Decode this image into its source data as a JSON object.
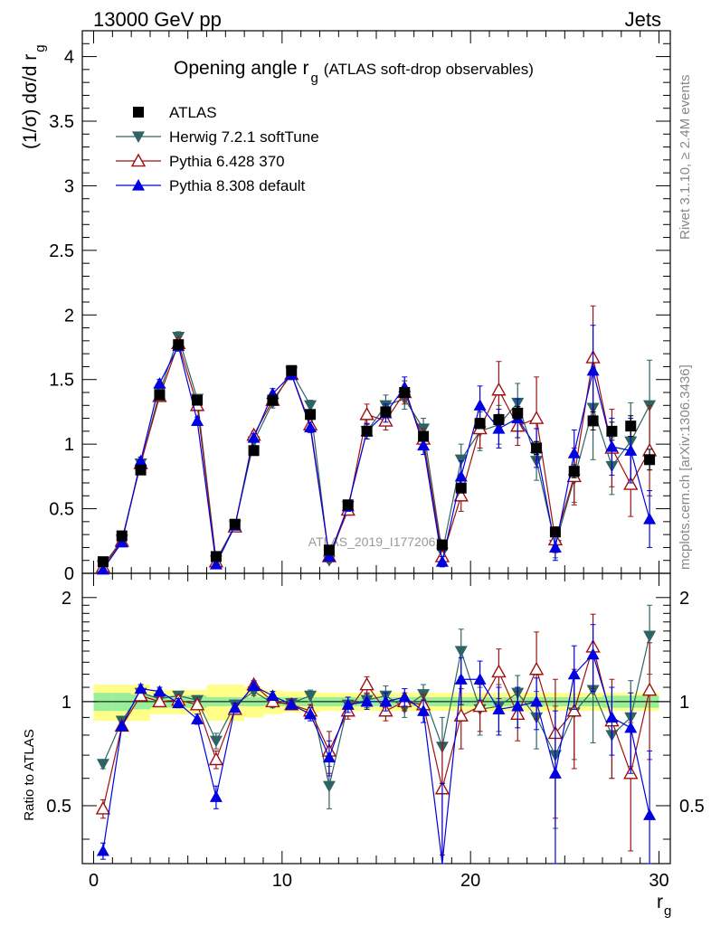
{
  "header": {
    "left": "13000 GeV pp",
    "right": "Jets"
  },
  "side_labels": {
    "rivet": "Rivet 3.1.10, ≥ 2.4M events",
    "mcplots": "mcplots.cern.ch [arXiv:1306.3436]"
  },
  "watermark": "ATLAS_2019_I1772062",
  "chart_data": [
    {
      "type": "scatter",
      "panel": "main",
      "title_main": "Opening angle r",
      "title_sub": "g",
      "title_rest": "(ATLAS soft-drop observables)",
      "ylabel": "(1/σ) dσ/d r",
      "ylabel_sub": "g",
      "ylim": [
        0,
        4.2
      ],
      "xlim": [
        -0.6,
        30.6
      ],
      "yticks": [
        0,
        0.5,
        1,
        1.5,
        2,
        2.5,
        3,
        3.5,
        4
      ],
      "ytick_labels": [
        "0",
        "0.5",
        "1",
        "1.5",
        "2",
        "2.5",
        "3",
        "3.5",
        "4"
      ],
      "x": [
        0.5,
        1.5,
        2.5,
        3.5,
        4.5,
        5.5,
        6.5,
        7.5,
        8.5,
        9.5,
        10.5,
        11.5,
        12.5,
        13.5,
        14.5,
        15.5,
        16.5,
        17.5,
        18.5,
        19.5,
        20.5,
        21.5,
        22.5,
        23.5,
        24.5,
        25.5,
        26.5,
        27.5,
        28.5,
        29.5
      ],
      "legend": [
        {
          "label": "ATLAS",
          "marker": "square-filled",
          "color": "#000000"
        },
        {
          "label": "Herwig 7.2.1 softTune",
          "marker": "triangle-down-filled",
          "color": "#2e6363"
        },
        {
          "label": "Pythia 6.428 370",
          "marker": "triangle-up-open",
          "color": "#a01010"
        },
        {
          "label": "Pythia 8.308 default",
          "marker": "triangle-up-filled",
          "color": "#0000e0"
        }
      ],
      "series": [
        {
          "name": "ATLAS",
          "color": "#000000",
          "marker": "square-filled",
          "line": false,
          "values": [
            0.09,
            0.29,
            0.8,
            1.38,
            1.77,
            1.34,
            0.13,
            0.38,
            0.95,
            1.34,
            1.57,
            1.23,
            0.18,
            0.53,
            1.1,
            1.25,
            1.4,
            1.06,
            0.22,
            0.66,
            1.16,
            1.19,
            1.24,
            0.97,
            0.32,
            0.79,
            1.18,
            1.1,
            1.14,
            0.88
          ],
          "errors": [
            0.01,
            0.01,
            0.02,
            0.02,
            0.02,
            0.02,
            0.01,
            0.02,
            0.02,
            0.02,
            0.02,
            0.02,
            0.01,
            0.02,
            0.03,
            0.03,
            0.03,
            0.03,
            0.02,
            0.03,
            0.04,
            0.04,
            0.05,
            0.05,
            0.03,
            0.05,
            0.07,
            0.07,
            0.08,
            0.08
          ]
        },
        {
          "name": "Herwig 7.2.1 softTune",
          "color": "#2e6363",
          "marker": "triangle-down-filled",
          "line": true,
          "values": [
            0.06,
            0.26,
            0.85,
            1.4,
            1.83,
            1.35,
            0.1,
            0.37,
            1.02,
            1.32,
            1.56,
            1.3,
            0.1,
            0.52,
            1.1,
            1.3,
            1.35,
            1.12,
            0.16,
            0.88,
            1.1,
            1.15,
            1.32,
            0.87,
            0.22,
            0.73,
            1.28,
            0.83,
            1.02,
            1.3
          ],
          "errors": [
            0.02,
            0.02,
            0.03,
            0.03,
            0.04,
            0.03,
            0.02,
            0.03,
            0.03,
            0.04,
            0.04,
            0.04,
            0.02,
            0.04,
            0.06,
            0.08,
            0.08,
            0.08,
            0.05,
            0.12,
            0.15,
            0.15,
            0.15,
            0.15,
            0.1,
            0.18,
            0.4,
            0.22,
            0.3,
            0.35
          ]
        },
        {
          "name": "Pythia 6.428 370",
          "color": "#a01010",
          "marker": "triangle-up-open",
          "line": true,
          "values": [
            0.05,
            0.25,
            0.85,
            1.37,
            1.78,
            1.3,
            0.09,
            0.36,
            1.07,
            1.34,
            1.54,
            1.15,
            0.13,
            0.49,
            1.23,
            1.18,
            1.4,
            1.04,
            0.13,
            0.6,
            1.12,
            1.42,
            1.14,
            1.2,
            0.26,
            0.75,
            1.67,
            0.97,
            0.69,
            0.95
          ],
          "errors": [
            0.02,
            0.02,
            0.03,
            0.03,
            0.04,
            0.03,
            0.02,
            0.03,
            0.03,
            0.04,
            0.04,
            0.04,
            0.03,
            0.04,
            0.08,
            0.07,
            0.09,
            0.08,
            0.05,
            0.12,
            0.15,
            0.22,
            0.15,
            0.32,
            0.1,
            0.22,
            0.4,
            0.3,
            0.25,
            0.35
          ]
        },
        {
          "name": "Pythia 8.308 default",
          "color": "#0000e0",
          "marker": "triangle-up-filled",
          "line": true,
          "values": [
            0.03,
            0.24,
            0.87,
            1.47,
            1.76,
            1.18,
            0.07,
            0.37,
            1.05,
            1.39,
            1.54,
            1.13,
            0.13,
            0.52,
            1.1,
            1.24,
            1.44,
            0.99,
            0.09,
            0.75,
            1.3,
            1.12,
            1.2,
            0.97,
            0.2,
            0.93,
            1.57,
            0.98,
            0.95,
            0.42
          ],
          "errors": [
            0.01,
            0.02,
            0.03,
            0.03,
            0.04,
            0.03,
            0.02,
            0.03,
            0.03,
            0.04,
            0.04,
            0.04,
            0.02,
            0.04,
            0.06,
            0.07,
            0.08,
            0.07,
            0.04,
            0.12,
            0.15,
            0.15,
            0.15,
            0.15,
            0.1,
            0.18,
            0.35,
            0.22,
            0.25,
            0.22
          ]
        }
      ]
    },
    {
      "type": "scatter",
      "panel": "ratio",
      "ylabel": "Ratio to ATLAS",
      "xlabel": "r",
      "xlabel_sub": "g",
      "ylim": [
        0.34,
        2.35
      ],
      "xlim": [
        -0.6,
        30.6
      ],
      "yticks": [
        0.5,
        1,
        2
      ],
      "ytick_labels": [
        "0.5",
        "1",
        "2"
      ],
      "xticks": [
        0,
        10,
        20,
        30
      ],
      "xtick_labels": [
        "0",
        "10",
        "20",
        "30"
      ],
      "bands": {
        "stat_color": "#99ee99",
        "syst_color": "#ffff88",
        "x_edges": [
          0,
          1,
          2,
          3,
          6,
          8,
          9,
          10,
          12,
          15,
          18,
          21,
          24,
          27,
          30
        ],
        "stat_halfwidth": [
          0.06,
          0.06,
          0.05,
          0.04,
          0.03,
          0.03,
          0.03,
          0.03,
          0.03,
          0.03,
          0.03,
          0.03,
          0.03,
          0.04
        ],
        "syst_halfwidth": [
          0.12,
          0.12,
          0.12,
          0.08,
          0.12,
          0.1,
          0.08,
          0.07,
          0.06,
          0.06,
          0.06,
          0.06,
          0.06,
          0.06
        ]
      },
      "x": [
        0.5,
        1.5,
        2.5,
        3.5,
        4.5,
        5.5,
        6.5,
        7.5,
        8.5,
        9.5,
        10.5,
        11.5,
        12.5,
        13.5,
        14.5,
        15.5,
        16.5,
        17.5,
        18.5,
        19.5,
        20.5,
        21.5,
        22.5,
        23.5,
        24.5,
        25.5,
        26.5,
        27.5,
        28.5,
        29.5
      ],
      "series": [
        {
          "name": "Herwig 7.2.1 softTune",
          "color": "#2e6363",
          "marker": "triangle-down-filled",
          "values": [
            0.66,
            0.88,
            1.06,
            1.02,
            1.04,
            1.01,
            0.77,
            0.98,
            1.07,
            0.99,
            0.99,
            1.04,
            0.57,
            0.98,
            1.01,
            1.04,
            0.96,
            1.05,
            0.74,
            1.4,
            0.95,
            0.97,
            1.06,
            0.9,
            0.7,
            0.93,
            1.08,
            0.8,
            0.9,
            1.55
          ],
          "errors": [
            0.02,
            0.02,
            0.03,
            0.03,
            0.03,
            0.03,
            0.04,
            0.03,
            0.03,
            0.03,
            0.03,
            0.04,
            0.08,
            0.05,
            0.05,
            0.07,
            0.06,
            0.07,
            0.16,
            0.22,
            0.15,
            0.15,
            0.13,
            0.17,
            0.27,
            0.25,
            0.32,
            0.2,
            0.25,
            0.35
          ]
        },
        {
          "name": "Pythia 6.428 370",
          "color": "#a01010",
          "marker": "triangle-up-open",
          "values": [
            0.49,
            0.85,
            1.04,
            1.0,
            1.01,
            0.98,
            0.68,
            0.95,
            1.12,
            1.0,
            0.98,
            0.94,
            0.72,
            0.94,
            1.12,
            0.94,
            1.0,
            0.98,
            0.56,
            0.91,
            0.97,
            1.22,
            0.92,
            1.24,
            0.81,
            0.94,
            1.44,
            0.88,
            0.62,
            1.08
          ],
          "errors": [
            0.03,
            0.02,
            0.03,
            0.03,
            0.03,
            0.03,
            0.04,
            0.03,
            0.03,
            0.03,
            0.03,
            0.04,
            0.1,
            0.05,
            0.06,
            0.06,
            0.06,
            0.07,
            0.2,
            0.18,
            0.15,
            0.2,
            0.15,
            0.35,
            0.35,
            0.3,
            0.35,
            0.28,
            0.25,
            0.4
          ]
        },
        {
          "name": "Pythia 8.308 default",
          "color": "#0000e0",
          "marker": "triangle-up-filled",
          "values": [
            0.37,
            0.85,
            1.09,
            1.07,
            0.99,
            0.89,
            0.53,
            0.96,
            1.11,
            1.04,
            0.98,
            0.92,
            0.69,
            0.98,
            1.0,
            1.0,
            1.03,
            0.94,
            0.33,
            1.16,
            1.16,
            0.95,
            0.97,
            1.0,
            0.62,
            1.2,
            1.37,
            0.9,
            0.84,
            0.47
          ],
          "errors": [
            0.02,
            0.02,
            0.03,
            0.03,
            0.03,
            0.03,
            0.04,
            0.03,
            0.03,
            0.03,
            0.03,
            0.04,
            0.08,
            0.05,
            0.05,
            0.06,
            0.06,
            0.07,
            0.25,
            0.18,
            0.15,
            0.15,
            0.13,
            0.17,
            0.32,
            0.25,
            0.3,
            0.2,
            0.22,
            0.25
          ]
        }
      ]
    }
  ]
}
